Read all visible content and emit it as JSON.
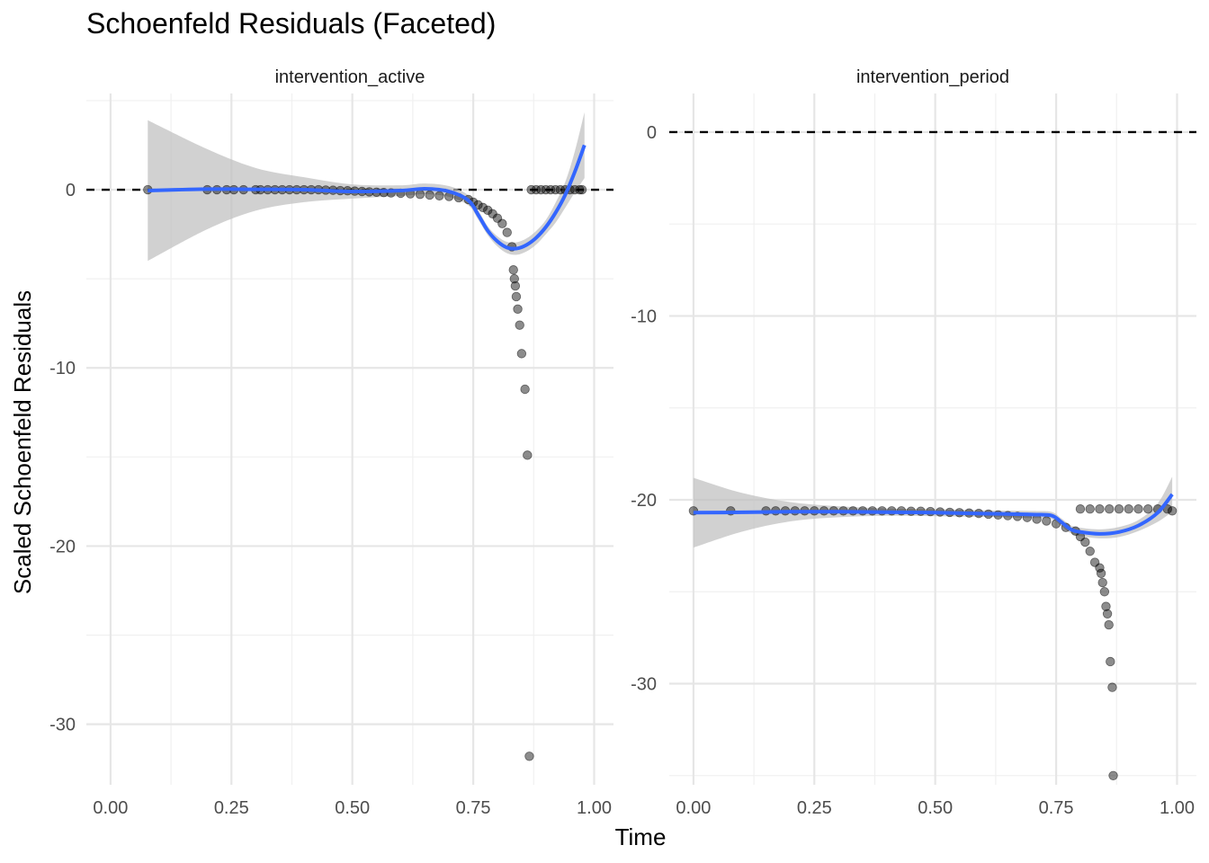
{
  "title": "Schoenfeld Residuals (Faceted)",
  "chart_data": {
    "type": "scatter",
    "title": "Schoenfeld Residuals (Faceted)",
    "xlabel": "Time",
    "ylabel": "Scaled Schoenfeld Residuals",
    "grid": true,
    "colors": {
      "points": "#000000",
      "smooth": "#3366FF",
      "band": "#bdbdbd",
      "reference": "#000000"
    },
    "facets": [
      {
        "name": "intervention_active",
        "xlim": [
          -0.05,
          1.04
        ],
        "ylim": [
          -33.4,
          5.4
        ],
        "x_ticks": [
          0,
          0.25,
          0.5,
          0.75,
          1.0
        ],
        "x_tick_labels": [
          "0.00",
          "0.25",
          "0.50",
          "0.75",
          "1.00"
        ],
        "y_ticks": [
          0,
          -10,
          -20,
          -30
        ],
        "y_tick_labels": [
          "0",
          "-10",
          "-20",
          "-30"
        ],
        "reference_y": 0,
        "points": [
          [
            0.077,
            0
          ],
          [
            0.2,
            0
          ],
          [
            0.22,
            0
          ],
          [
            0.24,
            0
          ],
          [
            0.255,
            0
          ],
          [
            0.275,
            0
          ],
          [
            0.3,
            0
          ],
          [
            0.31,
            0
          ],
          [
            0.325,
            0
          ],
          [
            0.34,
            0
          ],
          [
            0.355,
            0
          ],
          [
            0.37,
            0
          ],
          [
            0.385,
            0
          ],
          [
            0.4,
            0
          ],
          [
            0.415,
            0
          ],
          [
            0.43,
            0
          ],
          [
            0.445,
            -0.02
          ],
          [
            0.46,
            -0.03
          ],
          [
            0.475,
            -0.05
          ],
          [
            0.49,
            -0.06
          ],
          [
            0.505,
            -0.08
          ],
          [
            0.52,
            -0.1
          ],
          [
            0.535,
            -0.12
          ],
          [
            0.55,
            -0.14
          ],
          [
            0.565,
            -0.16
          ],
          [
            0.58,
            -0.18
          ],
          [
            0.6,
            -0.2
          ],
          [
            0.62,
            -0.23
          ],
          [
            0.64,
            -0.26
          ],
          [
            0.66,
            -0.3
          ],
          [
            0.68,
            -0.34
          ],
          [
            0.7,
            -0.38
          ],
          [
            0.72,
            -0.45
          ],
          [
            0.74,
            -0.55
          ],
          [
            0.75,
            -0.7
          ],
          [
            0.76,
            -0.85
          ],
          [
            0.77,
            -1.0
          ],
          [
            0.78,
            -1.15
          ],
          [
            0.79,
            -1.35
          ],
          [
            0.8,
            -1.6
          ],
          [
            0.81,
            -1.9
          ],
          [
            0.82,
            -2.4
          ],
          [
            0.83,
            -3.2
          ],
          [
            0.833,
            -4.5
          ],
          [
            0.835,
            -5.0
          ],
          [
            0.837,
            -5.4
          ],
          [
            0.839,
            -6.0
          ],
          [
            0.842,
            -6.7
          ],
          [
            0.846,
            -7.6
          ],
          [
            0.85,
            -9.2
          ],
          [
            0.857,
            -11.2
          ],
          [
            0.862,
            -14.9
          ],
          [
            0.866,
            -31.8
          ],
          [
            0.87,
            0
          ],
          [
            0.88,
            0
          ],
          [
            0.89,
            0
          ],
          [
            0.9,
            0
          ],
          [
            0.91,
            0
          ],
          [
            0.92,
            0
          ],
          [
            0.93,
            0
          ],
          [
            0.94,
            0
          ],
          [
            0.95,
            0
          ],
          [
            0.96,
            0
          ],
          [
            0.97,
            0
          ],
          [
            0.975,
            0
          ]
        ],
        "smooth": [
          [
            0.077,
            -0.05
          ],
          [
            0.2,
            0.03
          ],
          [
            0.3,
            0.02
          ],
          [
            0.4,
            0.0
          ],
          [
            0.5,
            -0.1
          ],
          [
            0.6,
            -0.05
          ],
          [
            0.65,
            0.05
          ],
          [
            0.7,
            -0.1
          ],
          [
            0.74,
            -0.6
          ],
          [
            0.76,
            -1.4
          ],
          [
            0.78,
            -2.3
          ],
          [
            0.8,
            -2.9
          ],
          [
            0.82,
            -3.25
          ],
          [
            0.84,
            -3.3
          ],
          [
            0.86,
            -3.1
          ],
          [
            0.88,
            -2.7
          ],
          [
            0.9,
            -2.1
          ],
          [
            0.92,
            -1.3
          ],
          [
            0.94,
            -0.3
          ],
          [
            0.96,
            1.0
          ],
          [
            0.98,
            2.5
          ]
        ],
        "band_half_width": [
          [
            0.077,
            3.95
          ],
          [
            0.15,
            3.0
          ],
          [
            0.25,
            1.5
          ],
          [
            0.35,
            0.9
          ],
          [
            0.45,
            0.5
          ],
          [
            0.55,
            0.3
          ],
          [
            0.65,
            0.3
          ],
          [
            0.72,
            0.3
          ],
          [
            0.78,
            0.25
          ],
          [
            0.84,
            0.35
          ],
          [
            0.9,
            0.4
          ],
          [
            0.95,
            0.8
          ],
          [
            0.98,
            1.85
          ]
        ]
      },
      {
        "name": "intervention_period",
        "xlim": [
          -0.05,
          1.04
        ],
        "ylim": [
          -35.5,
          2.1
        ],
        "x_ticks": [
          0,
          0.25,
          0.5,
          0.75,
          1.0
        ],
        "x_tick_labels": [
          "0.00",
          "0.25",
          "0.50",
          "0.75",
          "1.00"
        ],
        "y_ticks": [
          0,
          -10,
          -20,
          -30
        ],
        "y_tick_labels": [
          "0",
          "-10",
          "-20",
          "-30"
        ],
        "reference_y": 0,
        "points": [
          [
            0.0,
            -20.6
          ],
          [
            0.077,
            -20.6
          ],
          [
            0.15,
            -20.6
          ],
          [
            0.17,
            -20.6
          ],
          [
            0.19,
            -20.6
          ],
          [
            0.21,
            -20.6
          ],
          [
            0.23,
            -20.6
          ],
          [
            0.25,
            -20.6
          ],
          [
            0.27,
            -20.6
          ],
          [
            0.29,
            -20.6
          ],
          [
            0.31,
            -20.6
          ],
          [
            0.33,
            -20.6
          ],
          [
            0.35,
            -20.6
          ],
          [
            0.37,
            -20.6
          ],
          [
            0.39,
            -20.6
          ],
          [
            0.41,
            -20.6
          ],
          [
            0.43,
            -20.6
          ],
          [
            0.45,
            -20.62
          ],
          [
            0.47,
            -20.62
          ],
          [
            0.49,
            -20.64
          ],
          [
            0.51,
            -20.66
          ],
          [
            0.53,
            -20.68
          ],
          [
            0.55,
            -20.7
          ],
          [
            0.57,
            -20.72
          ],
          [
            0.59,
            -20.74
          ],
          [
            0.61,
            -20.78
          ],
          [
            0.63,
            -20.82
          ],
          [
            0.65,
            -20.86
          ],
          [
            0.67,
            -20.9
          ],
          [
            0.69,
            -20.96
          ],
          [
            0.71,
            -21.05
          ],
          [
            0.73,
            -21.15
          ],
          [
            0.75,
            -21.3
          ],
          [
            0.77,
            -21.5
          ],
          [
            0.79,
            -21.7
          ],
          [
            0.8,
            -22.0
          ],
          [
            0.81,
            -22.3
          ],
          [
            0.82,
            -22.8
          ],
          [
            0.83,
            -23.4
          ],
          [
            0.84,
            -23.7
          ],
          [
            0.843,
            -24.0
          ],
          [
            0.846,
            -24.5
          ],
          [
            0.85,
            -25.0
          ],
          [
            0.853,
            -25.8
          ],
          [
            0.856,
            -26.2
          ],
          [
            0.859,
            -26.8
          ],
          [
            0.862,
            -28.8
          ],
          [
            0.866,
            -30.2
          ],
          [
            0.868,
            -35.0
          ],
          [
            0.8,
            -20.5
          ],
          [
            0.82,
            -20.5
          ],
          [
            0.84,
            -20.5
          ],
          [
            0.86,
            -20.5
          ],
          [
            0.88,
            -20.5
          ],
          [
            0.9,
            -20.5
          ],
          [
            0.92,
            -20.5
          ],
          [
            0.94,
            -20.5
          ],
          [
            0.96,
            -20.5
          ],
          [
            0.98,
            -20.5
          ],
          [
            0.99,
            -20.6
          ]
        ],
        "smooth": [
          [
            0.0,
            -20.7
          ],
          [
            0.1,
            -20.68
          ],
          [
            0.2,
            -20.65
          ],
          [
            0.3,
            -20.65
          ],
          [
            0.4,
            -20.67
          ],
          [
            0.5,
            -20.7
          ],
          [
            0.6,
            -20.75
          ],
          [
            0.7,
            -20.8
          ],
          [
            0.74,
            -20.85
          ],
          [
            0.76,
            -21.2
          ],
          [
            0.78,
            -21.6
          ],
          [
            0.8,
            -21.75
          ],
          [
            0.84,
            -21.85
          ],
          [
            0.88,
            -21.75
          ],
          [
            0.92,
            -21.4
          ],
          [
            0.96,
            -20.7
          ],
          [
            0.99,
            -19.7
          ]
        ],
        "band_half_width": [
          [
            0.0,
            1.9
          ],
          [
            0.08,
            1.2
          ],
          [
            0.15,
            0.7
          ],
          [
            0.25,
            0.35
          ],
          [
            0.4,
            0.2
          ],
          [
            0.6,
            0.18
          ],
          [
            0.75,
            0.2
          ],
          [
            0.85,
            0.25
          ],
          [
            0.92,
            0.3
          ],
          [
            0.96,
            0.5
          ],
          [
            0.99,
            0.95
          ]
        ]
      }
    ]
  }
}
